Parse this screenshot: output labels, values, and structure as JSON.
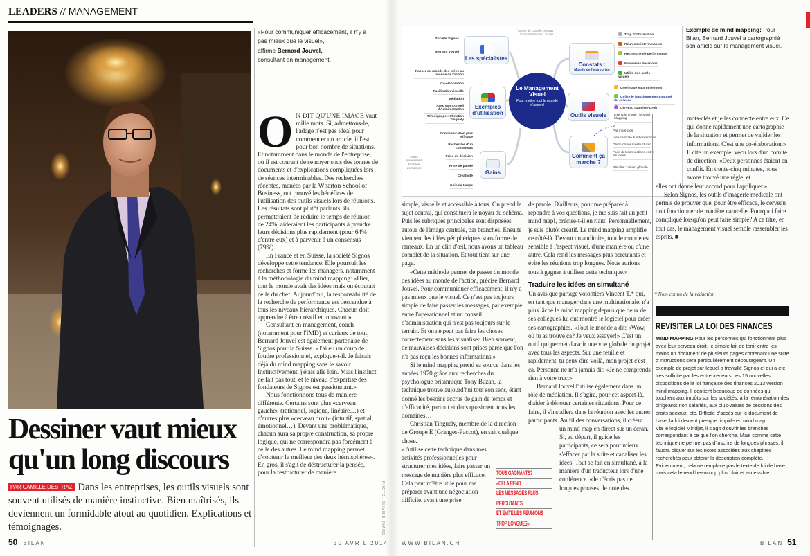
{
  "header": {
    "section": "LEADERS //",
    "subsection": "MANAGEMENT"
  },
  "pull_quote_top": {
    "text": "«Pour communiquer efficacement, il n'y a pas mieux que le visuel»,",
    "affirm": "affirme",
    "name": "Bernard Jouvel,",
    "role": "consultant en management."
  },
  "article": {
    "title": "Dessiner vaut mieux qu'un long discours",
    "byline": "PAR CAMILLE DESTRAZ",
    "deck": "Dans les entreprises, les outils visuels sont souvent utilisés de manière instinctive. Bien maîtrisés, ils deviennent un formidable atout au quotidien. Explications et témoignages.",
    "drop_cap": "O",
    "lead_smallcaps": "N DIT QU'UNE IMAGE",
    "left_col": [
      "vaut mille mots. Si, admettons-le, l'adage n'est pas idéal pour commencer un article, il l'est pour bon nombre de situations. Et notamment dans le monde de l'entreprise, où il est courant de se noyer sous des tonnes de documents et d'explications compliquées lors de séances interminables. Des recherches récentes, menées par la Wharton School of Business, ont prouvé les bénéfices de l'utilisation des outils visuels lors de réunions. Les résultats sont plutôt parlants: ils permettraient de réduire le temps de réunion de 24%, aideraient les participants à prendre leurs décisions plus rapidement (pour 64% d'entre eux) et à parvenir à un consensus (79%).",
      "En France et en Suisse, la société Signos développe cette tendance. Elle poursuit les recherches et forme les managers, notamment à la méthodologie du mind mapping: «Hier, tout le monde avait des idées mais on écoutait celle du chef. Aujourd'hui, la responsabilité de la recherche de performance est descendue à tous les niveaux hiérarchiques. Chacun doit apprendre à être créatif et innovant.»",
      "Consultant en management, coach (notamment pour l'IMD) et curieux de tout, Bernard Jouvel est également partenaire de Signos pour la Suisse. «J'ai eu un coup de foudre professionnel, explique-t-il. Je faisais déjà du mind mapping sans le savoir. Instinctivement, j'étais allé loin. Mais l'instinct ne fait pas tout, et le niveau d'expertise des fondateurs de Signos est passionnant.»",
      "Nous fonctionnons tous de manière différente. Certains sont plus «cerveau gauche» (rationnel, logique, linéaire…) et d'autres plus «cerveau droit» (intuitif, spatial, émotionnel…). Devant une problématique, chacun aura sa propre construction, sa propre logique, qui ne correspondra pas forcément à celle des autres. Le mind mapping permet d'«obtenir le meilleur des deux hémisphères». En gros, il s'agit de déstructurer la pensée, pour la restructurer de manière"
    ],
    "col_a": [
      "simple, visuelle et accessible à tous. On prend le sujet central, qui constituera le noyau du schéma. Puis les rubriques principales sont disposées autour de l'image centrale, par branches. Ensuite viennent les idées périphériques sous forme de rameaux. En un clin d'œil, nous avons un tableau complet de la situation. Et tout tient sur une page.",
      "«Cette méthode permet de passer du monde des idées au monde de l'action, précise Bernard Jouvel. Pour communiquer efficacement, il n'y a pas mieux que le visuel. Ce n'est pas toujours simple de faire passer les messages, par exemple entre l'opérationnel et un conseil d'administration qui n'est pas toujours sur le terrain. Et on ne peut pas faire les choses correctement sans les visualiser. Bien souvent, de mauvaises décisions sont prises parce que l'on n'a pas reçu les bonnes informations.»",
      "Si le mind mapping prend sa source dans les années 1970 grâce aux recherches du psychologue britannique Tony Buzan, la technique trouve aujourd'hui tout son sens, étant donné les besoins accrus de gain de temps et d'efficacité, partout et dans quasiment tous les domaines…",
      "Christian Tinguely, membre de la direction de Groupe E (Granges-Paccot), en sait quelque chose.",
      "«J'utilise cette technique dans mes activités professionnelles pour structurer mes idées, faire passer un message de manière plus efficace. Cela peut m'être utile pour me préparer avant une négociation difficile, avant une prise"
    ],
    "col_b": [
      "de parole. D'ailleurs, pour me préparer à répondre à vos questions, je me suis fait un petit mind map!, précise-t-il en riant. Personnellement, je suis plutôt créatif. Le mind mapping amplifie ce côté-là. Devant un auditoire, tout le monde est sensible à l'aspect visuel, d'une manière ou d'une autre. Cela rend les messages plus percutants et évite les réunions trop longues. Nous aurions tous à gagner à utiliser cette technique.»",
      "Un avis que partage volontiers Vincent T.* qui, en tant que manager dans une multinationale, n'a plus lâché le mind mapping depuis que deux de ses collègues lui ont montré le logiciel pour créer ses cartographies. «Tout le monde a dit: «Wow, où tu as trouvé ça? Je veux essayer!» C'est un outil qui permet d'avoir une vue globale du projet avec tous les aspects. Sur une feuille et rapidement, tu peux dire voilà, mon projet c'est ça. Personne ne m'a jamais dit: «Je ne comprends rien à votre truc.»",
      "Bernard Jouvel l'utilise également dans un rôle de médiation. Il s'agira, pour cet aspect-là, d'aider à dénouer certaines situations. Pour ce faire, il s'installera dans la réunion avec les autres participants. Au fil des conversations, il créera",
      "un mind map en direct sur un écran. Si, au départ, il guide les participants, ce sera pour mieux s'effacer par la suite et canaliser les idées. Tout se fait en simultané, à la manière d'un traducteur lors d'une conférence. «Je n'écris pas de longues phrases. Je note des"
    ],
    "subheading": "Traduire les idées en simultané",
    "col_c": [
      "mots-clés et je les connecte entre eux. Ce qui donne rapidement une cartographie de la situation et permet de valider les informations. C'est une co-élaboration.» Il cite un exemple, vécu lors d'un comité de direction. «Deux personnes étaient en conflit. En trente-cinq minutes, nous avons trouvé une règle, et",
      "elles ont donné leur accord pour l'appliquer.»",
      "Selon Signos, les outils d'imagerie médicale ont permis de prouver que, pour être efficace, le cerveau doit fonctionner de manière naturelle. Pourquoi faire compliqué lorsqu'on peut faire simple? A ce titre, en tout cas, le management visuel semble rassembler les esprits."
    ],
    "end_mark": "■",
    "footnote": "* Nom connu de la rédaction",
    "pull_quote": [
      "TOUS GAGNANTS?",
      "«CELA REND",
      "LES MESSAGES PLUS",
      "PERCUTANTS",
      "ET ÉVITE LES RÉUNIONS",
      "TROP LONGUES»"
    ],
    "photo_credit": "PHOTO: OLIVIER EVARD"
  },
  "map_caption": {
    "lead": "Exemple de mind mapping:",
    "text": "Pour Bilan, Bernard Jouvel a cartographié son article sur le management visuel."
  },
  "mind_map": {
    "note": "Article de Camille Destraz / Carte de Bernard Jouvel",
    "center": {
      "title": "Le Management Visuel",
      "subtitle": "Pour mettre tout le monde d'accord"
    },
    "specialistes": {
      "label": "Les spécialistes",
      "items": [
        "Société Signos",
        "Bernard Jouvel"
      ]
    },
    "exemples": {
      "label": "Exemples d'utilisation",
      "items": [
        "Passer du monde des idées au monde de l'action",
        "Co-élaboration",
        "Facilitation visuelle",
        "Médiation",
        "Avec son Conseil d'Administration",
        "Témoignage : Christian Tinguely"
      ]
    },
    "gains": {
      "label": "Gains",
      "note": "Dans quasiment tous les domaines",
      "items": [
        "Communication plus efficace",
        "Recherche d'un consensus",
        "Prise de décision",
        "Prise de parole",
        "Créativité",
        "Gain de temps"
      ]
    },
    "constats": {
      "label": "Constats :",
      "sublabel": "Monde de l'entreprise",
      "items": [
        "Trop d'information",
        "Réunions interminables",
        "Recherche de performance",
        "Mauvaises décisions",
        "Utilité des outils visuels"
      ]
    },
    "outils": {
      "label": "Outils visuels",
      "items": [
        "Une image vaut mille mots",
        "Utilise le fonctionnement naturel du cerveau",
        "Cerveau Gauche / Droit",
        "Exemple d'outil : le Mind Mapping"
      ]
    },
    "comment": {
      "label": "Comment ça marche ?",
      "items": [
        "Par mots-clés",
        "Idée centrale & arborescence",
        "Déstructurer / restructurer",
        "Faire des connections entre les idées",
        "Résultat : vision globale"
      ]
    }
  },
  "box": {
    "title": "REVISITER LA LOI DES FINANCES",
    "lead": "MIND MAPPING",
    "p1": "Pour les personnes qui fonctionnent plus avec leur cerveau droit, le simple fait de tenir entre les mains un document de plusieurs pages contenant une suite d'instructions sera particulièrement décourageant. Un exemple de projet sur lequel a travaillé Signos et qui a été très sollicité par les entrepreneurs: les 15 nouvelles dispositions de la loi française des finances 2013 version mind mapping. Il contient beaucoup de données qui touchent aux impôts sur les sociétés, à la rémunération des dirigeants non salariés, aux plus-values de cessions des droits sociaux, etc. Difficile d'accès sur le document de base, la loi devient presque limpide en mind map.",
    "p2": "Via le logiciel Mindjet, il s'agit d'ouvrir les branches correspondant à ce que l'on cherche. Mais comme cette technique ne permet pas d'inscrire de longues phrases, il faudra cliquer sur les notes associées aux chapitres recherchés pour obtenir la description complète. Evidemment, cela ne remplace pas le texte de loi de base, mais cela le rend beaucoup plus clair et accessible."
  },
  "footer": {
    "left_page": "50",
    "left_mag": "BILAN",
    "date": "30 AVRIL 2014",
    "url": "WWW.BILAN.CH",
    "right_mag": "BILAN",
    "right_page": "51"
  },
  "colors": {
    "accent_red": "#e3232c",
    "map_blue": "#1c2a8c",
    "node_text": "#1f3e9a"
  }
}
